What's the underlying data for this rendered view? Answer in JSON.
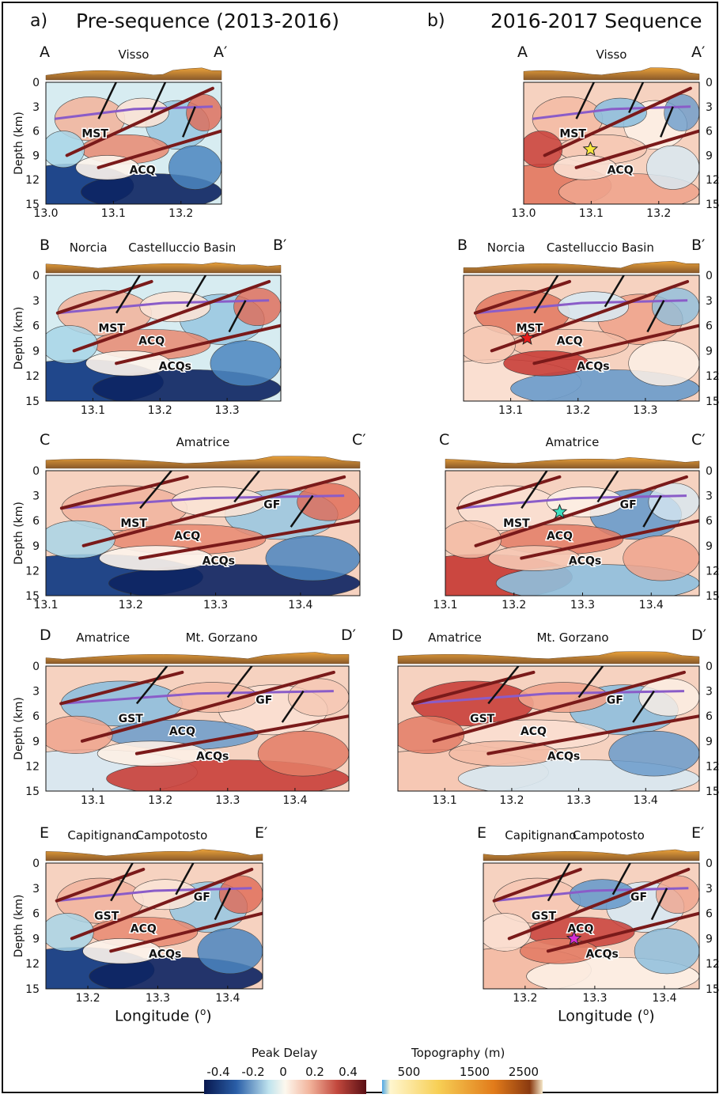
{
  "panel_a": {
    "letter": "a)",
    "title": "Pre-sequence (2013-2016)"
  },
  "panel_b": {
    "letter": "b)",
    "title": "2016-2017 Sequence"
  },
  "ylabel": "Depth (km)",
  "xlabel": "Longitude (o)",
  "sections": {
    "A": {
      "start": "A",
      "end": "A′",
      "places": [
        "Visso"
      ],
      "x_ticks": [
        "13.0",
        "13.1",
        "13.2"
      ],
      "y_ticks": [
        "0",
        "3",
        "6",
        "9",
        "12",
        "15"
      ],
      "faults": [
        "MST",
        "ACQ"
      ]
    },
    "B": {
      "start": "B",
      "end": "B′",
      "places": [
        "Norcia",
        "Castelluccio Basin"
      ],
      "x_ticks": [
        "13.1",
        "13.2",
        "13.3"
      ],
      "y_ticks": [
        "0",
        "3",
        "6",
        "9",
        "12",
        "15"
      ],
      "faults": [
        "MST",
        "ACQs",
        "ACQ"
      ]
    },
    "C": {
      "start": "C",
      "end": "C′",
      "places": [
        "Amatrice"
      ],
      "x_ticks": [
        "13.1",
        "13.2",
        "13.3",
        "13.4"
      ],
      "y_ticks": [
        "0",
        "3",
        "6",
        "9",
        "12",
        "15"
      ],
      "faults": [
        "MST",
        "ACQs",
        "ACQ",
        "GF"
      ]
    },
    "D": {
      "start": "D",
      "end": "D′",
      "places": [
        "Amatrice",
        "Mt. Gorzano"
      ],
      "x_ticks": [
        "13.1",
        "13.2",
        "13.3",
        "13.4"
      ],
      "y_ticks": [
        "0",
        "3",
        "6",
        "9",
        "12",
        "15"
      ],
      "faults": [
        "GST",
        "ACQs",
        "ACQ",
        "GF"
      ]
    },
    "E": {
      "start": "E",
      "end": "E′",
      "places": [
        "Capitignano",
        "Campotosto"
      ],
      "x_ticks": [
        "13.2",
        "13.3",
        "13.4"
      ],
      "y_ticks": [
        "0",
        "3",
        "6",
        "9",
        "12",
        "15"
      ],
      "faults": [
        "GST",
        "ACQs",
        "ACQ",
        "GF"
      ]
    }
  },
  "colorbar_peak": {
    "title": "Peak Delay",
    "ticks": [
      "-0.4",
      "-0.2",
      "0",
      "0.2",
      "0.4"
    ]
  },
  "colorbar_topo": {
    "title": "Topography  (m)",
    "ticks": [
      "500",
      "1500",
      "2500"
    ]
  },
  "colors": {
    "fault": "#7a1a1a",
    "normal_fault": "#111111",
    "purple_line": "#8a5cc8",
    "star_A": "#f5e63a",
    "star_B": "#e81c1c",
    "star_C": "#3ee0c0",
    "star_E": "#d62fd6"
  }
}
